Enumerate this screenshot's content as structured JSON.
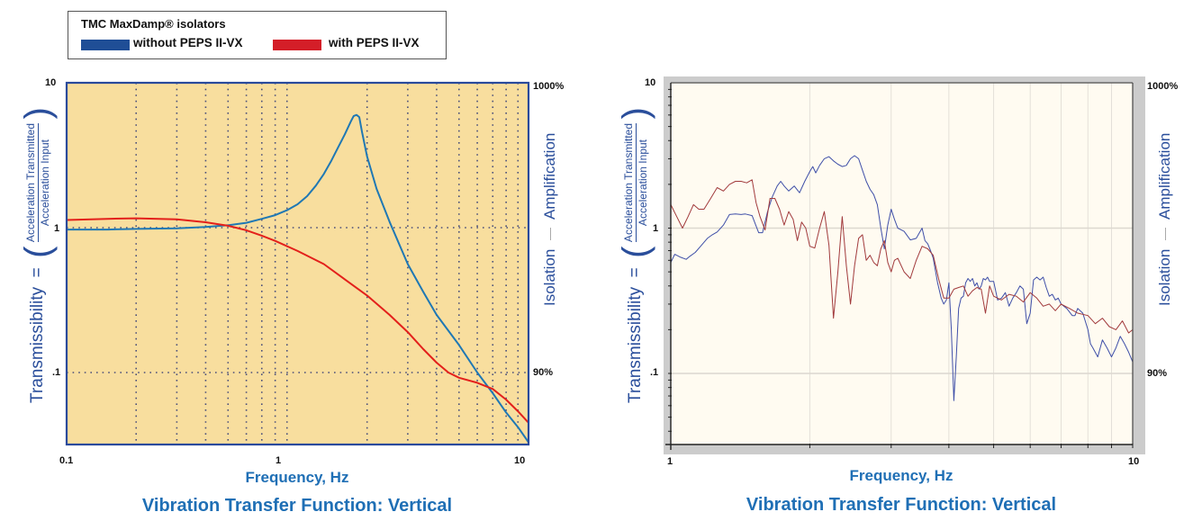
{
  "legend": {
    "title": "TMC MaxDamp® isolators",
    "entries": [
      {
        "label": "without PEPS II-VX",
        "color": "#1f4e96"
      },
      {
        "label": "with PEPS II-VX",
        "color": "#d41e28"
      }
    ]
  },
  "chart_data": [
    {
      "type": "line",
      "title": "Vibration Transfer Function: Vertical",
      "xlabel": "Frequency, Hz",
      "ylabel": "Transmissibility",
      "ylabel_formula": {
        "equals": "=",
        "numerator": "Acceleration Transmitted",
        "denominator": "Acceleration Input"
      },
      "right_axis": {
        "top_label": "1000%",
        "bottom_label": "90%",
        "upper_region": "Amplification",
        "lower_region": "Isolation"
      },
      "x_scale": "log",
      "y_scale": "log",
      "xlim": [
        0.1,
        10
      ],
      "ylim": [
        0.032,
        10
      ],
      "x_tick_labels": [
        "0.1",
        "1",
        "10"
      ],
      "y_tick_labels": [
        "10",
        "1",
        ".1"
      ],
      "grid": "dotted",
      "background": "#f8de9e",
      "series": [
        {
          "name": "without PEPS II-VX",
          "color": "#1f78b4",
          "x": [
            0.1,
            0.15,
            0.2,
            0.3,
            0.4,
            0.5,
            0.6,
            0.7,
            0.8,
            0.9,
            1.0,
            1.1,
            1.2,
            1.3,
            1.4,
            1.5,
            1.6,
            1.7,
            1.75,
            1.8,
            1.85,
            1.9,
            2.0,
            2.2,
            2.5,
            3.0,
            3.5,
            4.0,
            5.0,
            6.0,
            7.0,
            8.0,
            9.0,
            10.0
          ],
          "y": [
            0.97,
            0.97,
            0.98,
            0.99,
            1.01,
            1.04,
            1.08,
            1.15,
            1.22,
            1.32,
            1.45,
            1.65,
            1.95,
            2.35,
            2.9,
            3.6,
            4.4,
            5.4,
            5.9,
            6.0,
            5.8,
            4.6,
            3.1,
            1.85,
            1.1,
            0.56,
            0.36,
            0.25,
            0.155,
            0.1,
            0.072,
            0.053,
            0.042,
            0.033
          ]
        },
        {
          "name": "with PEPS II-VX",
          "color": "#e3201b",
          "x": [
            0.1,
            0.15,
            0.2,
            0.3,
            0.4,
            0.5,
            0.6,
            0.7,
            0.8,
            1.0,
            1.3,
            1.6,
            2.0,
            2.5,
            3.0,
            3.5,
            4.0,
            4.5,
            5.0,
            6.0,
            7.0,
            8.0,
            9.0,
            10.0
          ],
          "y": [
            1.13,
            1.15,
            1.16,
            1.14,
            1.09,
            1.03,
            0.96,
            0.88,
            0.81,
            0.69,
            0.56,
            0.44,
            0.34,
            0.25,
            0.19,
            0.145,
            0.117,
            0.1,
            0.092,
            0.085,
            0.077,
            0.065,
            0.054,
            0.045
          ]
        }
      ]
    },
    {
      "type": "line",
      "title": "Vibration Transfer Function: Vertical",
      "xlabel": "Frequency, Hz",
      "ylabel": "Transmissibility",
      "ylabel_formula": {
        "equals": "=",
        "numerator": "Acceleration Transmitted",
        "denominator": "Acceleration Input"
      },
      "right_axis": {
        "top_label": "1000%",
        "bottom_label": "90%",
        "upper_region": "Amplification",
        "lower_region": "Isolation"
      },
      "x_scale": "log",
      "y_scale": "log",
      "xlim": [
        1,
        10
      ],
      "ylim": [
        0.032,
        10
      ],
      "x_tick_labels": [
        "1",
        "10"
      ],
      "y_tick_labels": [
        "10",
        "1",
        ".1"
      ],
      "grid": "solid-light",
      "background": "#fffbf1",
      "series": [
        {
          "name": "without PEPS II-VX",
          "color": "#3f4fa8",
          "x": [
            1.0,
            1.02,
            1.05,
            1.08,
            1.1,
            1.13,
            1.16,
            1.2,
            1.23,
            1.26,
            1.3,
            1.34,
            1.38,
            1.42,
            1.45,
            1.5,
            1.55,
            1.58,
            1.62,
            1.66,
            1.7,
            1.73,
            1.76,
            1.8,
            1.85,
            1.9,
            1.95,
            2.0,
            2.03,
            2.06,
            2.1,
            2.15,
            2.2,
            2.25,
            2.3,
            2.35,
            2.4,
            2.45,
            2.5,
            2.55,
            2.6,
            2.65,
            2.7,
            2.75,
            2.8,
            2.85,
            2.9,
            2.95,
            3.0,
            3.05,
            3.1,
            3.2,
            3.3,
            3.4,
            3.5,
            3.55,
            3.6,
            3.65,
            3.7,
            3.78,
            3.85,
            3.9,
            3.95,
            4.0,
            4.05,
            4.1,
            4.15,
            4.2,
            4.25,
            4.3,
            4.35,
            4.4,
            4.45,
            4.5,
            4.55,
            4.6,
            4.65,
            4.7,
            4.75,
            4.8,
            4.85,
            4.9,
            5.0,
            5.1,
            5.2,
            5.3,
            5.4,
            5.5,
            5.6,
            5.7,
            5.8,
            5.9,
            6.0,
            6.1,
            6.2,
            6.3,
            6.4,
            6.5,
            6.6,
            6.7,
            6.8,
            6.9,
            7.0,
            7.2,
            7.4,
            7.5,
            7.6,
            7.8,
            8.0,
            8.1,
            8.2,
            8.4,
            8.6,
            8.8,
            9.0,
            9.2,
            9.4,
            9.6,
            9.8,
            10.0
          ],
          "y": [
            0.58,
            0.66,
            0.63,
            0.61,
            0.64,
            0.68,
            0.75,
            0.85,
            0.9,
            0.94,
            1.05,
            1.24,
            1.25,
            1.24,
            1.25,
            1.22,
            0.93,
            0.93,
            1.3,
            1.65,
            1.95,
            2.1,
            1.95,
            1.8,
            1.95,
            1.75,
            2.1,
            2.45,
            2.65,
            2.4,
            2.7,
            3.0,
            3.1,
            2.9,
            2.75,
            2.65,
            2.7,
            3.0,
            3.15,
            3.0,
            2.5,
            2.1,
            1.85,
            1.7,
            1.45,
            1.0,
            0.72,
            1.05,
            1.35,
            1.15,
            1.0,
            0.95,
            0.83,
            0.85,
            1.0,
            0.82,
            0.78,
            0.7,
            0.62,
            0.42,
            0.33,
            0.3,
            0.32,
            0.42,
            0.2,
            0.065,
            0.13,
            0.28,
            0.33,
            0.34,
            0.42,
            0.45,
            0.43,
            0.45,
            0.4,
            0.42,
            0.38,
            0.4,
            0.45,
            0.44,
            0.46,
            0.43,
            0.43,
            0.32,
            0.33,
            0.36,
            0.29,
            0.33,
            0.36,
            0.4,
            0.38,
            0.22,
            0.26,
            0.44,
            0.46,
            0.44,
            0.46,
            0.39,
            0.34,
            0.35,
            0.32,
            0.33,
            0.3,
            0.28,
            0.25,
            0.25,
            0.28,
            0.26,
            0.2,
            0.16,
            0.15,
            0.13,
            0.17,
            0.15,
            0.13,
            0.15,
            0.18,
            0.16,
            0.14,
            0.12
          ]
        },
        {
          "name": "with PEPS II-VX",
          "color": "#a13a3c",
          "x": [
            1.0,
            1.03,
            1.06,
            1.09,
            1.12,
            1.15,
            1.18,
            1.22,
            1.26,
            1.3,
            1.34,
            1.38,
            1.42,
            1.46,
            1.5,
            1.53,
            1.56,
            1.6,
            1.64,
            1.68,
            1.72,
            1.76,
            1.8,
            1.84,
            1.88,
            1.92,
            1.96,
            2.0,
            2.05,
            2.1,
            2.15,
            2.2,
            2.25,
            2.3,
            2.35,
            2.4,
            2.45,
            2.5,
            2.55,
            2.6,
            2.65,
            2.7,
            2.75,
            2.8,
            2.85,
            2.9,
            2.95,
            3.0,
            3.05,
            3.1,
            3.2,
            3.3,
            3.4,
            3.5,
            3.6,
            3.7,
            3.8,
            3.9,
            4.0,
            4.1,
            4.2,
            4.3,
            4.4,
            4.5,
            4.6,
            4.7,
            4.8,
            4.9,
            5.0,
            5.2,
            5.4,
            5.6,
            5.8,
            6.0,
            6.2,
            6.4,
            6.6,
            6.8,
            7.0,
            7.3,
            7.6,
            8.0,
            8.3,
            8.6,
            8.9,
            9.2,
            9.5,
            9.8,
            10.0
          ],
          "y": [
            1.45,
            1.2,
            1.0,
            1.2,
            1.45,
            1.35,
            1.35,
            1.6,
            1.9,
            1.8,
            2.0,
            2.1,
            2.1,
            2.05,
            2.15,
            1.5,
            1.2,
            0.97,
            1.6,
            1.6,
            1.35,
            1.05,
            1.3,
            1.15,
            0.82,
            1.1,
            1.0,
            0.75,
            0.73,
            1.0,
            1.3,
            0.76,
            0.24,
            0.5,
            1.2,
            0.55,
            0.3,
            0.55,
            0.85,
            0.9,
            0.6,
            0.65,
            0.58,
            0.55,
            0.72,
            0.82,
            0.58,
            0.5,
            0.6,
            0.62,
            0.5,
            0.45,
            0.6,
            0.75,
            0.72,
            0.65,
            0.45,
            0.33,
            0.33,
            0.38,
            0.39,
            0.4,
            0.34,
            0.37,
            0.39,
            0.38,
            0.26,
            0.4,
            0.34,
            0.32,
            0.35,
            0.34,
            0.31,
            0.36,
            0.33,
            0.29,
            0.3,
            0.27,
            0.3,
            0.28,
            0.26,
            0.25,
            0.22,
            0.24,
            0.21,
            0.2,
            0.23,
            0.19,
            0.2
          ]
        }
      ]
    }
  ]
}
